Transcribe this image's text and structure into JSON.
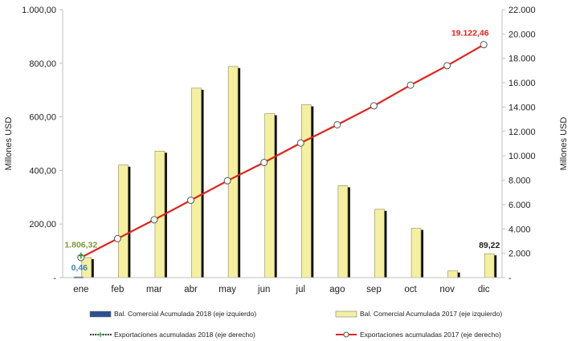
{
  "chart_data": {
    "type": "bar",
    "categories": [
      "ene",
      "feb",
      "mar",
      "abr",
      "may",
      "jun",
      "jul",
      "ago",
      "sep",
      "oct",
      "nov",
      "dic"
    ],
    "y_left": {
      "label": "Millones USD",
      "ylim": [
        0,
        1000
      ],
      "tick_values": [
        0,
        200,
        400,
        600,
        800,
        1000
      ],
      "tick_labels": [
        "-",
        "200,00",
        "400,00",
        "600,00",
        "800,00",
        "1.000,00"
      ]
    },
    "y_right": {
      "label": "Millones USD",
      "ylim": [
        0,
        22000
      ],
      "tick_values": [
        0,
        2000,
        4000,
        6000,
        8000,
        10000,
        12000,
        14000,
        16000,
        18000,
        20000,
        22000
      ],
      "tick_labels": [
        "-",
        "2.000",
        "4.000",
        "6.000",
        "8.000",
        "10.000",
        "12.000",
        "14.000",
        "16.000",
        "18.000",
        "20.000",
        "22.000"
      ]
    },
    "series": [
      {
        "name": "Bal. Comercial Acumulada 2018 (eje izquierdo)",
        "type": "bar",
        "axis": "left",
        "color": "#2e4f8f",
        "values": [
          0.46,
          null,
          null,
          null,
          null,
          null,
          null,
          null,
          null,
          null,
          null,
          null
        ]
      },
      {
        "name": "Bal. Comercial Acumulada 2017 (eje izquierdo)",
        "type": "bar",
        "axis": "left",
        "color": "#f4f0a0",
        "values": [
          75,
          420,
          472,
          707,
          788,
          612,
          645,
          343,
          255,
          184,
          25,
          89.22
        ]
      },
      {
        "name": "Exportaciones acumuladas 2018 (eje derecho)",
        "type": "line",
        "axis": "right",
        "color": "#2f9e3f",
        "values": [
          1806.32,
          null,
          null,
          null,
          null,
          null,
          null,
          null,
          null,
          null,
          null,
          null
        ]
      },
      {
        "name": "Exportaciones acumuladas 2017 (eje derecho)",
        "type": "line",
        "axis": "right",
        "color": "#e0231c",
        "values": [
          1650,
          3200,
          4750,
          6350,
          7950,
          9450,
          11050,
          12550,
          14100,
          15800,
          17400,
          19122.46
        ]
      }
    ],
    "data_labels": [
      {
        "text": "1.806,32",
        "color": "#7a9a3a"
      },
      {
        "text": "0,46",
        "color": "#3a7fc1"
      },
      {
        "text": "89,22",
        "color": "#222222"
      },
      {
        "text": "19.122,46",
        "color": "#e0231c"
      }
    ],
    "legend_position": "bottom",
    "grid": false
  }
}
